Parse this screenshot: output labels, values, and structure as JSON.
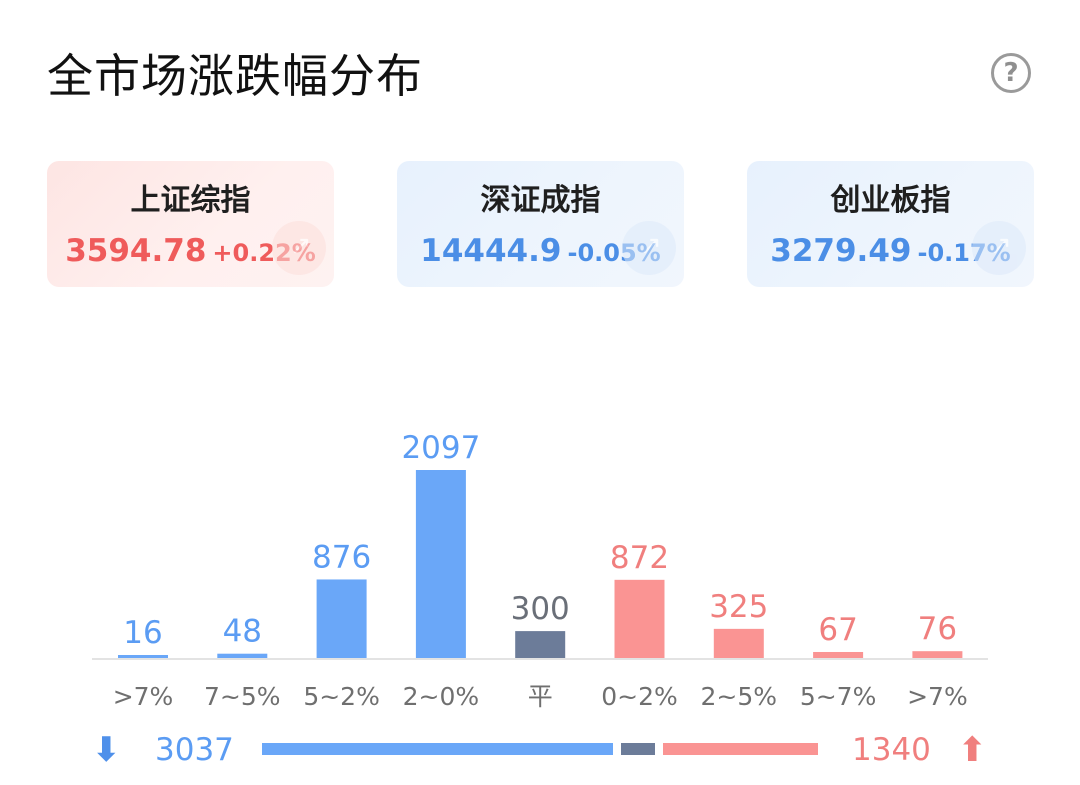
{
  "header": {
    "title": "全市场涨跌幅分布",
    "help_icon": "question-circle-icon",
    "help_symbol": "?"
  },
  "indices": [
    {
      "name": "上证综指",
      "price": "3594.78",
      "change": "+0.22%",
      "trend": "up",
      "color": "#ef5b5b"
    },
    {
      "name": "深证成指",
      "price": "14444.9",
      "change": "-0.05%",
      "trend": "down",
      "color": "#4b8ee6"
    },
    {
      "name": "创业板指",
      "price": "3279.49",
      "change": "-0.17%",
      "trend": "down",
      "color": "#4b8ee6"
    }
  ],
  "chart_data": {
    "type": "bar",
    "categories": [
      ">7%",
      "7~5%",
      "5~2%",
      "2~0%",
      "平",
      "0~2%",
      "2~5%",
      "5~7%",
      ">7%"
    ],
    "values": [
      16,
      48,
      876,
      2097,
      300,
      872,
      325,
      67,
      76
    ],
    "groups": [
      "down",
      "down",
      "down",
      "down",
      "flat",
      "up",
      "up",
      "up",
      "up"
    ],
    "ylim": [
      0,
      2097
    ],
    "grid": false,
    "colors": {
      "down_bar": "#6aa7f8",
      "down_label": "#5b9cf3",
      "flat_bar": "#6c7c99",
      "flat_label": "#6a6f78",
      "up_bar": "#fa9493",
      "up_label": "#f07f7e",
      "axis": "#e3e3e3",
      "tick_label": "#6f6f6f"
    }
  },
  "summary": {
    "down_icon": "arrow-down-icon",
    "down_symbol": "⬇",
    "down_total": "3037",
    "flat_total": 300,
    "up_icon": "arrow-up-icon",
    "up_symbol": "⬆",
    "up_total": "1340",
    "colors": {
      "down": "#6aa7f8",
      "flat": "#6c7c99",
      "up": "#fa9493"
    }
  }
}
